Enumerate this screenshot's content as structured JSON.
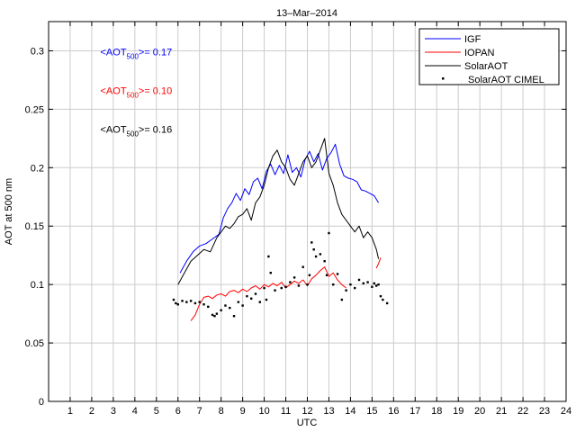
{
  "chart_data": {
    "type": "line",
    "title": "13–Mar–2014",
    "xlabel": "UTC",
    "ylabel": "AOT at 500 nm",
    "xlim": [
      0,
      24
    ],
    "ylim": [
      0,
      0.325
    ],
    "xticks": [
      1,
      2,
      3,
      4,
      5,
      6,
      7,
      8,
      9,
      10,
      11,
      12,
      13,
      14,
      15,
      16,
      17,
      18,
      19,
      20,
      21,
      22,
      23,
      24
    ],
    "xtick_labels": [
      "1",
      "2",
      "3",
      "4",
      "5",
      "6",
      "7",
      "8",
      "9",
      "10",
      "11",
      "12",
      "13",
      "14",
      "15",
      "16",
      "17",
      "18",
      "19",
      "20",
      "21",
      "22",
      "23",
      "24"
    ],
    "yticks": [
      0,
      0.05,
      0.1,
      0.15,
      0.2,
      0.25,
      0.3
    ],
    "ytick_labels": [
      "0",
      "0.05",
      "0.1",
      "0.15",
      "0.2",
      "0.25",
      "0.3"
    ],
    "grid": true,
    "legend_position": "top-right",
    "legend": [
      "IGF",
      "IOPAN",
      "SolarAOT",
      "SolarAOT CIMEL"
    ],
    "annotations": [
      {
        "prefix": "<AOT",
        "sub": "500",
        "suffix": ">= 0.17",
        "color": "#0000ff",
        "x": 2.4,
        "y": 0.296
      },
      {
        "prefix": "<AOT",
        "sub": "500",
        "suffix": ">= 0.10",
        "color": "#ff0000",
        "x": 2.4,
        "y": 0.263
      },
      {
        "prefix": "<AOT",
        "sub": "500",
        "suffix": ">= 0.16",
        "color": "#000000",
        "x": 2.4,
        "y": 0.23
      }
    ],
    "series": [
      {
        "name": "IGF",
        "style": "line",
        "color": "#0000ff",
        "x": [
          6.1,
          6.4,
          6.7,
          7.0,
          7.3,
          7.6,
          7.9,
          8.1,
          8.3,
          8.5,
          8.7,
          8.9,
          9.1,
          9.3,
          9.5,
          9.7,
          9.9,
          10.1,
          10.3,
          10.5,
          10.7,
          10.9,
          11.1,
          11.3,
          11.5,
          11.7,
          11.9,
          12.1,
          12.3,
          12.5,
          12.7,
          12.9,
          13.1,
          13.3,
          13.5,
          13.7,
          13.9,
          14.1,
          14.3,
          14.5,
          14.7,
          14.9,
          15.1,
          15.3
        ],
        "y": [
          0.11,
          0.12,
          0.128,
          0.133,
          0.135,
          0.139,
          0.143,
          0.157,
          0.165,
          0.17,
          0.178,
          0.172,
          0.182,
          0.177,
          0.188,
          0.191,
          0.182,
          0.197,
          0.203,
          0.194,
          0.202,
          0.195,
          0.211,
          0.196,
          0.2,
          0.192,
          0.207,
          0.214,
          0.205,
          0.212,
          0.198,
          0.208,
          0.213,
          0.22,
          0.203,
          0.193,
          0.191,
          0.19,
          0.188,
          0.181,
          0.18,
          0.178,
          0.176,
          0.17
        ]
      },
      {
        "name": "IOPAN",
        "style": "line",
        "color": "#ff0000",
        "x": [
          6.6,
          6.8,
          7.0,
          7.2,
          7.4,
          7.6,
          7.8,
          8.0,
          8.2,
          8.4,
          8.6,
          8.8,
          9.0,
          9.2,
          9.4,
          9.6,
          9.8,
          10.0,
          10.2,
          10.4,
          10.6,
          10.8,
          11.0,
          11.2,
          11.4,
          11.6,
          11.8,
          12.0,
          12.2,
          12.4,
          12.6,
          12.8,
          13.0,
          13.2,
          13.4,
          13.6,
          13.8
        ],
        "y": [
          0.069,
          0.074,
          0.083,
          0.089,
          0.09,
          0.088,
          0.091,
          0.092,
          0.09,
          0.094,
          0.095,
          0.093,
          0.096,
          0.094,
          0.097,
          0.099,
          0.096,
          0.1,
          0.098,
          0.101,
          0.099,
          0.102,
          0.097,
          0.1,
          0.103,
          0.101,
          0.104,
          0.099,
          0.105,
          0.108,
          0.112,
          0.115,
          0.107,
          0.11,
          0.104,
          0.1,
          0.097
        ]
      },
      {
        "name": "IOPAN",
        "style": "line",
        "color": "#ff0000",
        "x": [
          15.2,
          15.3,
          15.4
        ],
        "y": [
          0.114,
          0.118,
          0.123
        ]
      },
      {
        "name": "SolarAOT",
        "style": "line",
        "color": "#000000",
        "x": [
          6.0,
          6.3,
          6.6,
          6.9,
          7.2,
          7.5,
          7.8,
          8.0,
          8.2,
          8.4,
          8.6,
          8.8,
          9.0,
          9.2,
          9.4,
          9.6,
          9.8,
          10.0,
          10.2,
          10.4,
          10.6,
          10.8,
          11.0,
          11.2,
          11.4,
          11.6,
          11.8,
          12.0,
          12.2,
          12.4,
          12.6,
          12.8,
          13.0,
          13.2,
          13.4,
          13.6,
          13.8,
          14.0,
          14.2,
          14.4,
          14.6,
          14.8,
          15.0,
          15.2,
          15.3
        ],
        "y": [
          0.1,
          0.11,
          0.12,
          0.125,
          0.13,
          0.128,
          0.14,
          0.145,
          0.15,
          0.148,
          0.152,
          0.158,
          0.16,
          0.165,
          0.155,
          0.17,
          0.175,
          0.185,
          0.2,
          0.21,
          0.215,
          0.205,
          0.2,
          0.19,
          0.185,
          0.195,
          0.205,
          0.21,
          0.2,
          0.205,
          0.215,
          0.225,
          0.195,
          0.185,
          0.17,
          0.16,
          0.155,
          0.15,
          0.145,
          0.15,
          0.14,
          0.145,
          0.14,
          0.13,
          0.122
        ]
      },
      {
        "name": "SolarAOT CIMEL",
        "style": "dots",
        "color": "#000000",
        "x": [
          5.8,
          5.9,
          6.0,
          6.2,
          6.4,
          6.6,
          6.8,
          7.0,
          7.2,
          7.4,
          7.6,
          7.7,
          7.8,
          8.0,
          8.2,
          8.4,
          8.6,
          8.8,
          9.0,
          9.2,
          9.4,
          9.6,
          9.8,
          10.0,
          10.1,
          10.2,
          10.3,
          10.5,
          10.8,
          11.0,
          11.2,
          11.4,
          11.6,
          11.8,
          12.0,
          12.1,
          12.2,
          12.3,
          12.4,
          12.6,
          12.8,
          12.9,
          13.0,
          13.2,
          13.4,
          13.6,
          13.8,
          14.0,
          14.2,
          14.4,
          14.6,
          14.8,
          15.0,
          15.1,
          15.2,
          15.3,
          15.4,
          15.5,
          15.7
        ],
        "y": [
          0.087,
          0.084,
          0.083,
          0.086,
          0.085,
          0.086,
          0.084,
          0.085,
          0.083,
          0.081,
          0.074,
          0.073,
          0.075,
          0.078,
          0.082,
          0.08,
          0.073,
          0.085,
          0.082,
          0.09,
          0.088,
          0.092,
          0.085,
          0.097,
          0.087,
          0.124,
          0.11,
          0.095,
          0.097,
          0.098,
          0.102,
          0.106,
          0.099,
          0.115,
          0.1,
          0.108,
          0.136,
          0.13,
          0.124,
          0.126,
          0.12,
          0.108,
          0.144,
          0.1,
          0.109,
          0.087,
          0.095,
          0.1,
          0.097,
          0.104,
          0.101,
          0.102,
          0.098,
          0.101,
          0.099,
          0.1,
          0.09,
          0.087,
          0.084
        ]
      }
    ]
  }
}
